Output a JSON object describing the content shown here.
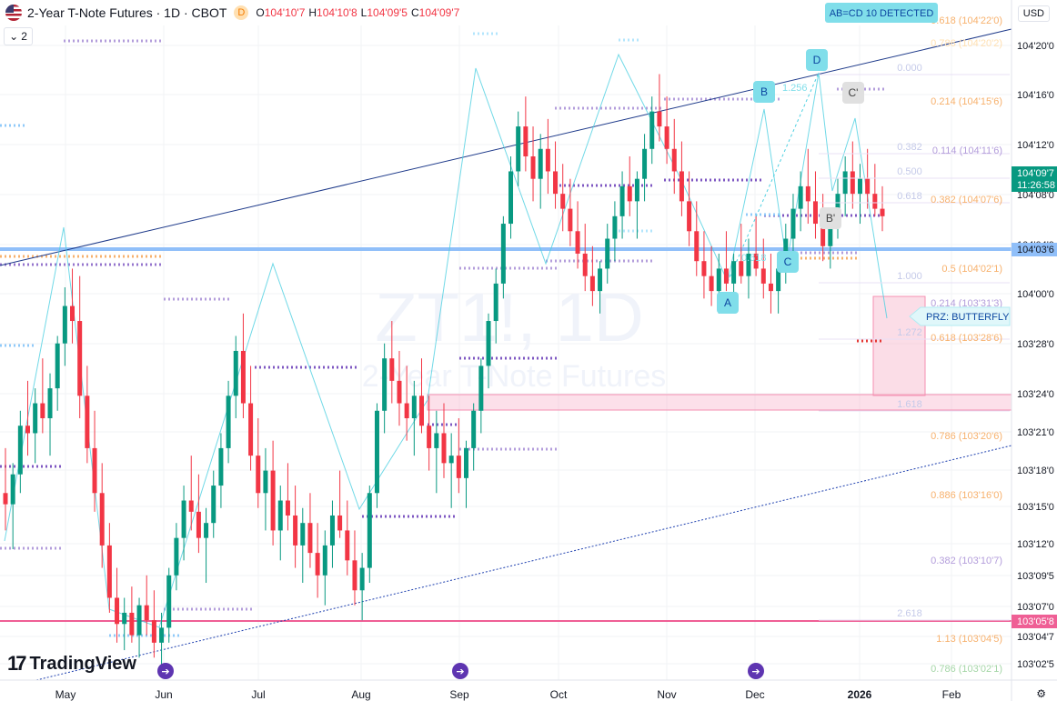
{
  "header": {
    "title": "2-Year T-Note Futures · 1D · CBOT",
    "badge": "D",
    "ohlc": [
      {
        "k": "O",
        "v": "104'10'7"
      },
      {
        "k": "H",
        "v": "104'10'8"
      },
      {
        "k": "L",
        "v": "104'09'5"
      },
      {
        "k": "C",
        "v": "104'09'7"
      }
    ],
    "legend_count": "2",
    "currency": "USD"
  },
  "watermark": {
    "symbol": "ZT1!, 1D",
    "name": "2-Year T-Note Futures"
  },
  "brand": "TradingView",
  "colors": {
    "bull": "#089981",
    "bear": "#f23645",
    "price_line": "#90bff9",
    "lower_line": "#ef5f95",
    "trend": "#1e3a8a",
    "harmonic": "#4dd0e1",
    "prz": "#f8bbd0",
    "fib_orange": "#f7b16d",
    "fib_purple": "#b39ddb"
  },
  "chart_data": {
    "type": "candlestick",
    "y_unit": "price in 32nds notation",
    "ylim": [
      103.0,
      104.75
    ],
    "x_labels": [
      "May",
      "Jun",
      "Jul",
      "Aug",
      "Sep",
      "Oct",
      "Nov",
      "Dec",
      "2026",
      "Feb"
    ],
    "y_ticks": [
      "104'20'0",
      "104'16'0",
      "104'12'0",
      "104'08'0",
      "104'04'0",
      "104'00'0",
      "103'28'0",
      "103'24'0",
      "103'21'0",
      "103'18'0",
      "103'15'0",
      "103'12'0",
      "103'09'5",
      "103'07'0",
      "103'04'7",
      "103'02'5"
    ],
    "current_price": {
      "value": "104'09'7",
      "countdown": "11:26:58"
    },
    "lines": [
      {
        "label": "104'03'6",
        "style": "horizontal"
      },
      {
        "label": "103'05'8",
        "style": "horizontal"
      }
    ],
    "pattern_labels": [
      "AB=CD 10 DETECTED",
      "PRZ: BUTTERFLY"
    ],
    "points": [
      "A",
      "B",
      "C",
      "D",
      "B'",
      "C'"
    ],
    "harmonic_ratios": [
      "1.256",
      "0.618"
    ],
    "fib_left": [
      "0.000",
      "0.382",
      "0.500",
      "0.618",
      "1.000",
      "1.272",
      "1.618",
      "2.618"
    ],
    "fib_right": [
      "0.618 (104'22'0)",
      "0.786 (104'20'2)",
      "0.214 (104'15'6)",
      "0.114 (104'11'6)",
      "0.382 (104'07'6)",
      "0.5 (104'02'1)",
      "0.214 (103'31'3)",
      "0.618 (103'28'6)",
      "0.786 (103'20'6)",
      "0.886 (103'16'0)",
      "0.382 (103'10'7)",
      "1.13 (103'04'5)",
      "0.786 (103'02'1)"
    ],
    "candles": [
      [
        103.5,
        103.62,
        103.4,
        103.47
      ],
      [
        103.47,
        103.58,
        103.35,
        103.55
      ],
      [
        103.55,
        103.72,
        103.5,
        103.68
      ],
      [
        103.68,
        103.8,
        103.6,
        103.66
      ],
      [
        103.66,
        103.78,
        103.58,
        103.74
      ],
      [
        103.74,
        103.86,
        103.66,
        103.7
      ],
      [
        103.7,
        103.82,
        103.6,
        103.78
      ],
      [
        103.78,
        103.92,
        103.72,
        103.9
      ],
      [
        103.9,
        104.05,
        103.84,
        104.0
      ],
      [
        104.0,
        104.1,
        103.9,
        103.96
      ],
      [
        103.96,
        104.08,
        103.7,
        103.76
      ],
      [
        103.76,
        103.84,
        103.58,
        103.62
      ],
      [
        103.62,
        103.72,
        103.45,
        103.5
      ],
      [
        103.5,
        103.58,
        103.3,
        103.36
      ],
      [
        103.36,
        103.42,
        103.18,
        103.22
      ],
      [
        103.22,
        103.3,
        103.1,
        103.15
      ],
      [
        103.15,
        103.22,
        103.08,
        103.18
      ],
      [
        103.18,
        103.25,
        103.1,
        103.12
      ],
      [
        103.12,
        103.22,
        103.06,
        103.2
      ],
      [
        103.2,
        103.28,
        103.12,
        103.16
      ],
      [
        103.16,
        103.24,
        103.06,
        103.1
      ],
      [
        103.1,
        103.18,
        103.04,
        103.14
      ],
      [
        103.14,
        103.3,
        103.1,
        103.28
      ],
      [
        103.28,
        103.42,
        103.24,
        103.38
      ],
      [
        103.38,
        103.52,
        103.32,
        103.48
      ],
      [
        103.48,
        103.6,
        103.4,
        103.45
      ],
      [
        103.45,
        103.55,
        103.34,
        103.38
      ],
      [
        103.38,
        103.46,
        103.26,
        103.42
      ],
      [
        103.42,
        103.56,
        103.38,
        103.52
      ],
      [
        103.52,
        103.66,
        103.46,
        103.62
      ],
      [
        103.62,
        103.8,
        103.58,
        103.76
      ],
      [
        103.76,
        103.92,
        103.7,
        103.88
      ],
      [
        103.88,
        103.98,
        103.7,
        103.74
      ],
      [
        103.74,
        103.84,
        103.56,
        103.6
      ],
      [
        103.6,
        103.7,
        103.46,
        103.5
      ],
      [
        103.5,
        103.62,
        103.4,
        103.56
      ],
      [
        103.56,
        103.64,
        103.36,
        103.4
      ],
      [
        103.4,
        103.52,
        103.32,
        103.48
      ],
      [
        103.48,
        103.58,
        103.4,
        103.44
      ],
      [
        103.44,
        103.52,
        103.3,
        103.36
      ],
      [
        103.36,
        103.46,
        103.26,
        103.42
      ],
      [
        103.42,
        103.5,
        103.3,
        103.34
      ],
      [
        103.34,
        103.42,
        103.22,
        103.28
      ],
      [
        103.28,
        103.4,
        103.2,
        103.36
      ],
      [
        103.36,
        103.48,
        103.3,
        103.44
      ],
      [
        103.44,
        103.56,
        103.38,
        103.4
      ],
      [
        103.4,
        103.48,
        103.28,
        103.32
      ],
      [
        103.32,
        103.4,
        103.2,
        103.24
      ],
      [
        103.24,
        103.34,
        103.16,
        103.3
      ],
      [
        103.3,
        103.52,
        103.26,
        103.5
      ],
      [
        103.5,
        103.74,
        103.46,
        103.72
      ],
      [
        103.72,
        103.9,
        103.66,
        103.86
      ],
      [
        103.86,
        103.96,
        103.74,
        103.8
      ],
      [
        103.8,
        103.88,
        103.68,
        103.74
      ],
      [
        103.74,
        103.84,
        103.64,
        103.7
      ],
      [
        103.7,
        103.8,
        103.6,
        103.76
      ],
      [
        103.76,
        103.86,
        103.66,
        103.68
      ],
      [
        103.68,
        103.76,
        103.56,
        103.62
      ],
      [
        103.62,
        103.72,
        103.5,
        103.66
      ],
      [
        103.66,
        103.74,
        103.54,
        103.58
      ],
      [
        103.58,
        103.66,
        103.46,
        103.6
      ],
      [
        103.6,
        103.7,
        103.5,
        103.54
      ],
      [
        103.54,
        103.64,
        103.46,
        103.62
      ],
      [
        103.62,
        103.74,
        103.56,
        103.72
      ],
      [
        103.72,
        103.86,
        103.66,
        103.84
      ],
      [
        103.84,
        103.98,
        103.78,
        103.96
      ],
      [
        103.96,
        104.1,
        103.9,
        104.06
      ],
      [
        104.06,
        104.24,
        104.02,
        104.22
      ],
      [
        104.22,
        104.4,
        104.18,
        104.36
      ],
      [
        104.36,
        104.52,
        104.32,
        104.48
      ],
      [
        104.48,
        104.56,
        104.36,
        104.4
      ],
      [
        104.4,
        104.48,
        104.28,
        104.34
      ],
      [
        104.34,
        104.46,
        104.26,
        104.42
      ],
      [
        104.42,
        104.5,
        104.3,
        104.36
      ],
      [
        104.36,
        104.44,
        104.26,
        104.3
      ],
      [
        104.3,
        104.38,
        104.2,
        104.26
      ],
      [
        104.26,
        104.34,
        104.16,
        104.2
      ],
      [
        104.2,
        104.28,
        104.1,
        104.14
      ],
      [
        104.14,
        104.22,
        104.04,
        104.08
      ],
      [
        104.08,
        104.16,
        104.0,
        104.04
      ],
      [
        104.04,
        104.12,
        103.98,
        104.1
      ],
      [
        104.1,
        104.22,
        104.06,
        104.18
      ],
      [
        104.18,
        104.28,
        104.12,
        104.24
      ],
      [
        104.24,
        104.36,
        104.18,
        104.32
      ],
      [
        104.32,
        104.4,
        104.24,
        104.28
      ],
      [
        104.28,
        104.36,
        104.18,
        104.34
      ],
      [
        104.34,
        104.46,
        104.28,
        104.42
      ],
      [
        104.42,
        104.56,
        104.38,
        104.52
      ],
      [
        104.52,
        104.62,
        104.44,
        104.48
      ],
      [
        104.48,
        104.56,
        104.38,
        104.42
      ],
      [
        104.42,
        104.5,
        104.3,
        104.36
      ],
      [
        104.36,
        104.44,
        104.24,
        104.28
      ],
      [
        104.28,
        104.36,
        104.16,
        104.2
      ],
      [
        104.2,
        104.28,
        104.08,
        104.12
      ],
      [
        104.12,
        104.2,
        104.02,
        104.08
      ],
      [
        104.08,
        104.16,
        104.0,
        104.04
      ],
      [
        104.04,
        104.14,
        103.98,
        104.1
      ],
      [
        104.1,
        104.2,
        104.04,
        104.06
      ],
      [
        104.06,
        104.14,
        103.98,
        104.12
      ],
      [
        104.12,
        104.22,
        104.06,
        104.08
      ],
      [
        104.08,
        104.18,
        104.02,
        104.14
      ],
      [
        104.14,
        104.24,
        104.08,
        104.1
      ],
      [
        104.1,
        104.18,
        104.02,
        104.06
      ],
      [
        104.06,
        104.14,
        103.98,
        104.04
      ],
      [
        104.04,
        104.12,
        103.98,
        104.1
      ],
      [
        104.1,
        104.22,
        104.06,
        104.18
      ],
      [
        104.18,
        104.3,
        104.12,
        104.26
      ],
      [
        104.26,
        104.36,
        104.2,
        104.32
      ],
      [
        104.32,
        104.42,
        104.22,
        104.28
      ],
      [
        104.28,
        104.36,
        104.18,
        104.22
      ],
      [
        104.22,
        104.3,
        104.12,
        104.16
      ],
      [
        104.16,
        104.26,
        104.1,
        104.22
      ],
      [
        104.22,
        104.34,
        104.18,
        104.3
      ],
      [
        104.3,
        104.4,
        104.24,
        104.36
      ],
      [
        104.36,
        104.44,
        104.26,
        104.3
      ],
      [
        104.3,
        104.38,
        104.22,
        104.34
      ],
      [
        104.34,
        104.42,
        104.26,
        104.3
      ],
      [
        104.3,
        104.38,
        104.24,
        104.26
      ],
      [
        104.26,
        104.32,
        104.2,
        104.24
      ]
    ]
  }
}
